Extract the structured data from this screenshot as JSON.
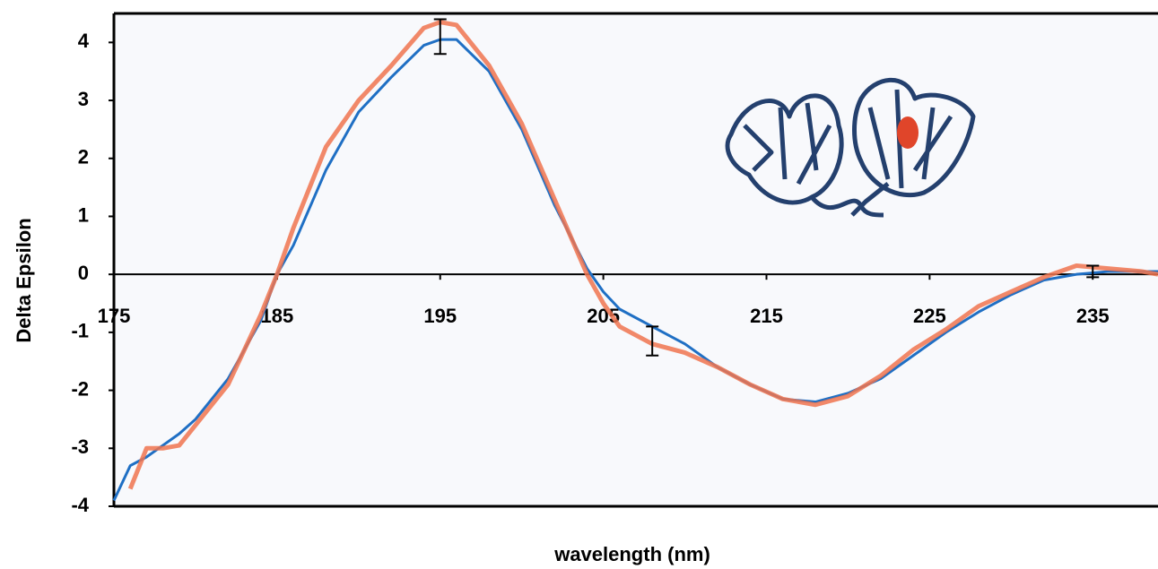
{
  "chart_data": {
    "type": "line",
    "x_label": "wavelength (nm)",
    "y_label": "Delta Epsilon",
    "x": [
      175,
      176,
      177,
      178,
      179,
      180,
      182,
      184,
      185,
      186,
      188,
      190,
      192,
      194,
      195,
      196,
      198,
      200,
      202,
      204,
      205,
      206,
      208,
      210,
      212,
      214,
      216,
      218,
      220,
      222,
      224,
      226,
      228,
      230,
      232,
      234,
      236,
      238,
      239
    ],
    "series": [
      {
        "color": "#1f6fc4",
        "values": [
          -3.9,
          -3.3,
          -3.15,
          -2.95,
          -2.75,
          -2.5,
          -1.8,
          -0.8,
          0.0,
          0.5,
          1.8,
          2.8,
          3.4,
          3.95,
          4.05,
          4.05,
          3.5,
          2.5,
          1.2,
          0.1,
          -0.3,
          -0.6,
          -0.9,
          -1.2,
          -1.6,
          -1.9,
          -2.15,
          -2.2,
          -2.05,
          -1.8,
          -1.4,
          -1.0,
          -0.65,
          -0.35,
          -0.1,
          0.0,
          0.05,
          0.05,
          0.05
        ]
      },
      {
        "color": "#f0744f",
        "values": [
          null,
          -3.7,
          -3.0,
          -3.0,
          -2.95,
          -2.6,
          -1.9,
          -0.7,
          0.0,
          0.8,
          2.2,
          3.0,
          3.6,
          4.25,
          4.35,
          4.3,
          3.6,
          2.6,
          1.3,
          0.0,
          -0.5,
          -0.9,
          -1.2,
          -1.35,
          -1.6,
          -1.9,
          -2.15,
          -2.25,
          -2.1,
          -1.75,
          -1.3,
          -0.95,
          -0.55,
          -0.3,
          -0.05,
          0.15,
          0.1,
          0.05,
          0.0
        ]
      }
    ],
    "error_bars": {
      "x": [
        195,
        208,
        235
      ],
      "values": [
        4.1,
        -1.15,
        0.05
      ],
      "errors": [
        0.3,
        0.25,
        0.1
      ],
      "color": "#000000"
    },
    "xlim": [
      175,
      239
    ],
    "ylim": [
      -4,
      4.5
    ],
    "xticks": [
      175,
      185,
      195,
      205,
      215,
      225,
      235
    ],
    "yticks": [
      -4,
      -3,
      -2,
      -1,
      0,
      1,
      2,
      3,
      4
    ]
  }
}
